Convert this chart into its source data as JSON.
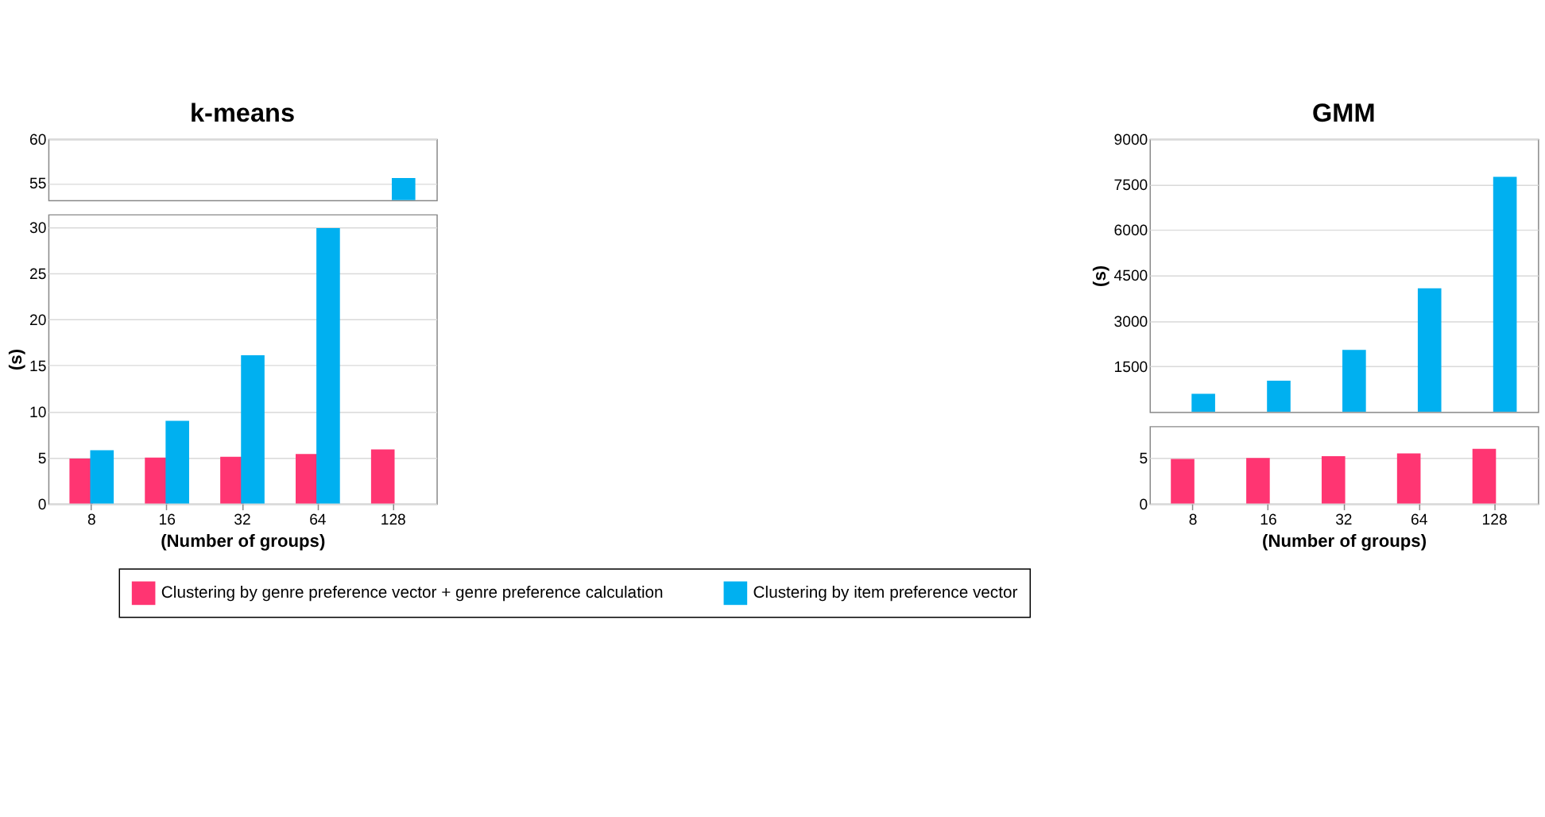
{
  "chart_data": [
    {
      "type": "bar",
      "title": "k-means",
      "categories": [
        "8",
        "16",
        "32",
        "64",
        "128"
      ],
      "ylim": [
        53.1,
        60
      ],
      "yticks": [
        55,
        60
      ],
      "grid": "y",
      "tick_labels": "y",
      "series": [
        {
          "color": "#ff3572",
          "values": [
            null,
            null,
            null,
            null,
            null
          ]
        },
        {
          "color": "#00b0f0",
          "values": [
            null,
            null,
            null,
            null,
            55.6
          ]
        }
      ]
    },
    {
      "type": "bar",
      "categories": [
        "8",
        "16",
        "32",
        "64",
        "128"
      ],
      "xlabel": "(Number of groups)",
      "ylabel": "(s)",
      "ylim": [
        0,
        31.4
      ],
      "yticks": [
        0,
        5,
        10,
        15,
        20,
        25,
        30
      ],
      "grid": "y",
      "legend": "bottom",
      "series": [
        {
          "name": "Clustering by genre preference vector + genre preference calculation",
          "color": "#ff3572",
          "values": [
            4.9,
            5.0,
            5.1,
            5.4,
            5.9
          ]
        },
        {
          "name": "Clustering by item preference vector",
          "color": "#00b0f0",
          "values": [
            5.8,
            9.0,
            16.1,
            29.9,
            null
          ]
        }
      ]
    },
    {
      "type": "bar",
      "title": "GMM",
      "ylabel": "(s)",
      "categories": [
        "8",
        "16",
        "32",
        "64",
        "128"
      ],
      "ylim": [
        0,
        9000
      ],
      "yticks": [
        {
          "value": 1500,
          "label": "1500"
        },
        {
          "value": 3000,
          "label": "3000"
        },
        {
          "value": 4500,
          "label": "4500"
        },
        {
          "value": 6000,
          "label": "6000"
        },
        {
          "value": 7500,
          "label": "7500"
        },
        {
          "value": 9000,
          "label": "9000"
        }
      ],
      "grid": "y",
      "tick_labels": "y",
      "series": [
        {
          "color": "#ff3572",
          "values": [
            null,
            null,
            null,
            null,
            null
          ]
        },
        {
          "color": "#00b0f0",
          "values": [
            600,
            1030,
            2050,
            4080,
            7750
          ]
        }
      ]
    },
    {
      "type": "bar",
      "categories": [
        "8",
        "16",
        "32",
        "64",
        "128"
      ],
      "xlabel": "(Number of groups)",
      "ylim": [
        0,
        8.5
      ],
      "yticks": [
        0,
        5
      ],
      "grid": "y",
      "series": [
        {
          "color": "#ff3572",
          "values": [
            4.9,
            5.0,
            5.2,
            5.5,
            6.0
          ]
        },
        {
          "color": "#00b0f0",
          "values": [
            null,
            null,
            null,
            null,
            null
          ]
        }
      ]
    }
  ]
}
